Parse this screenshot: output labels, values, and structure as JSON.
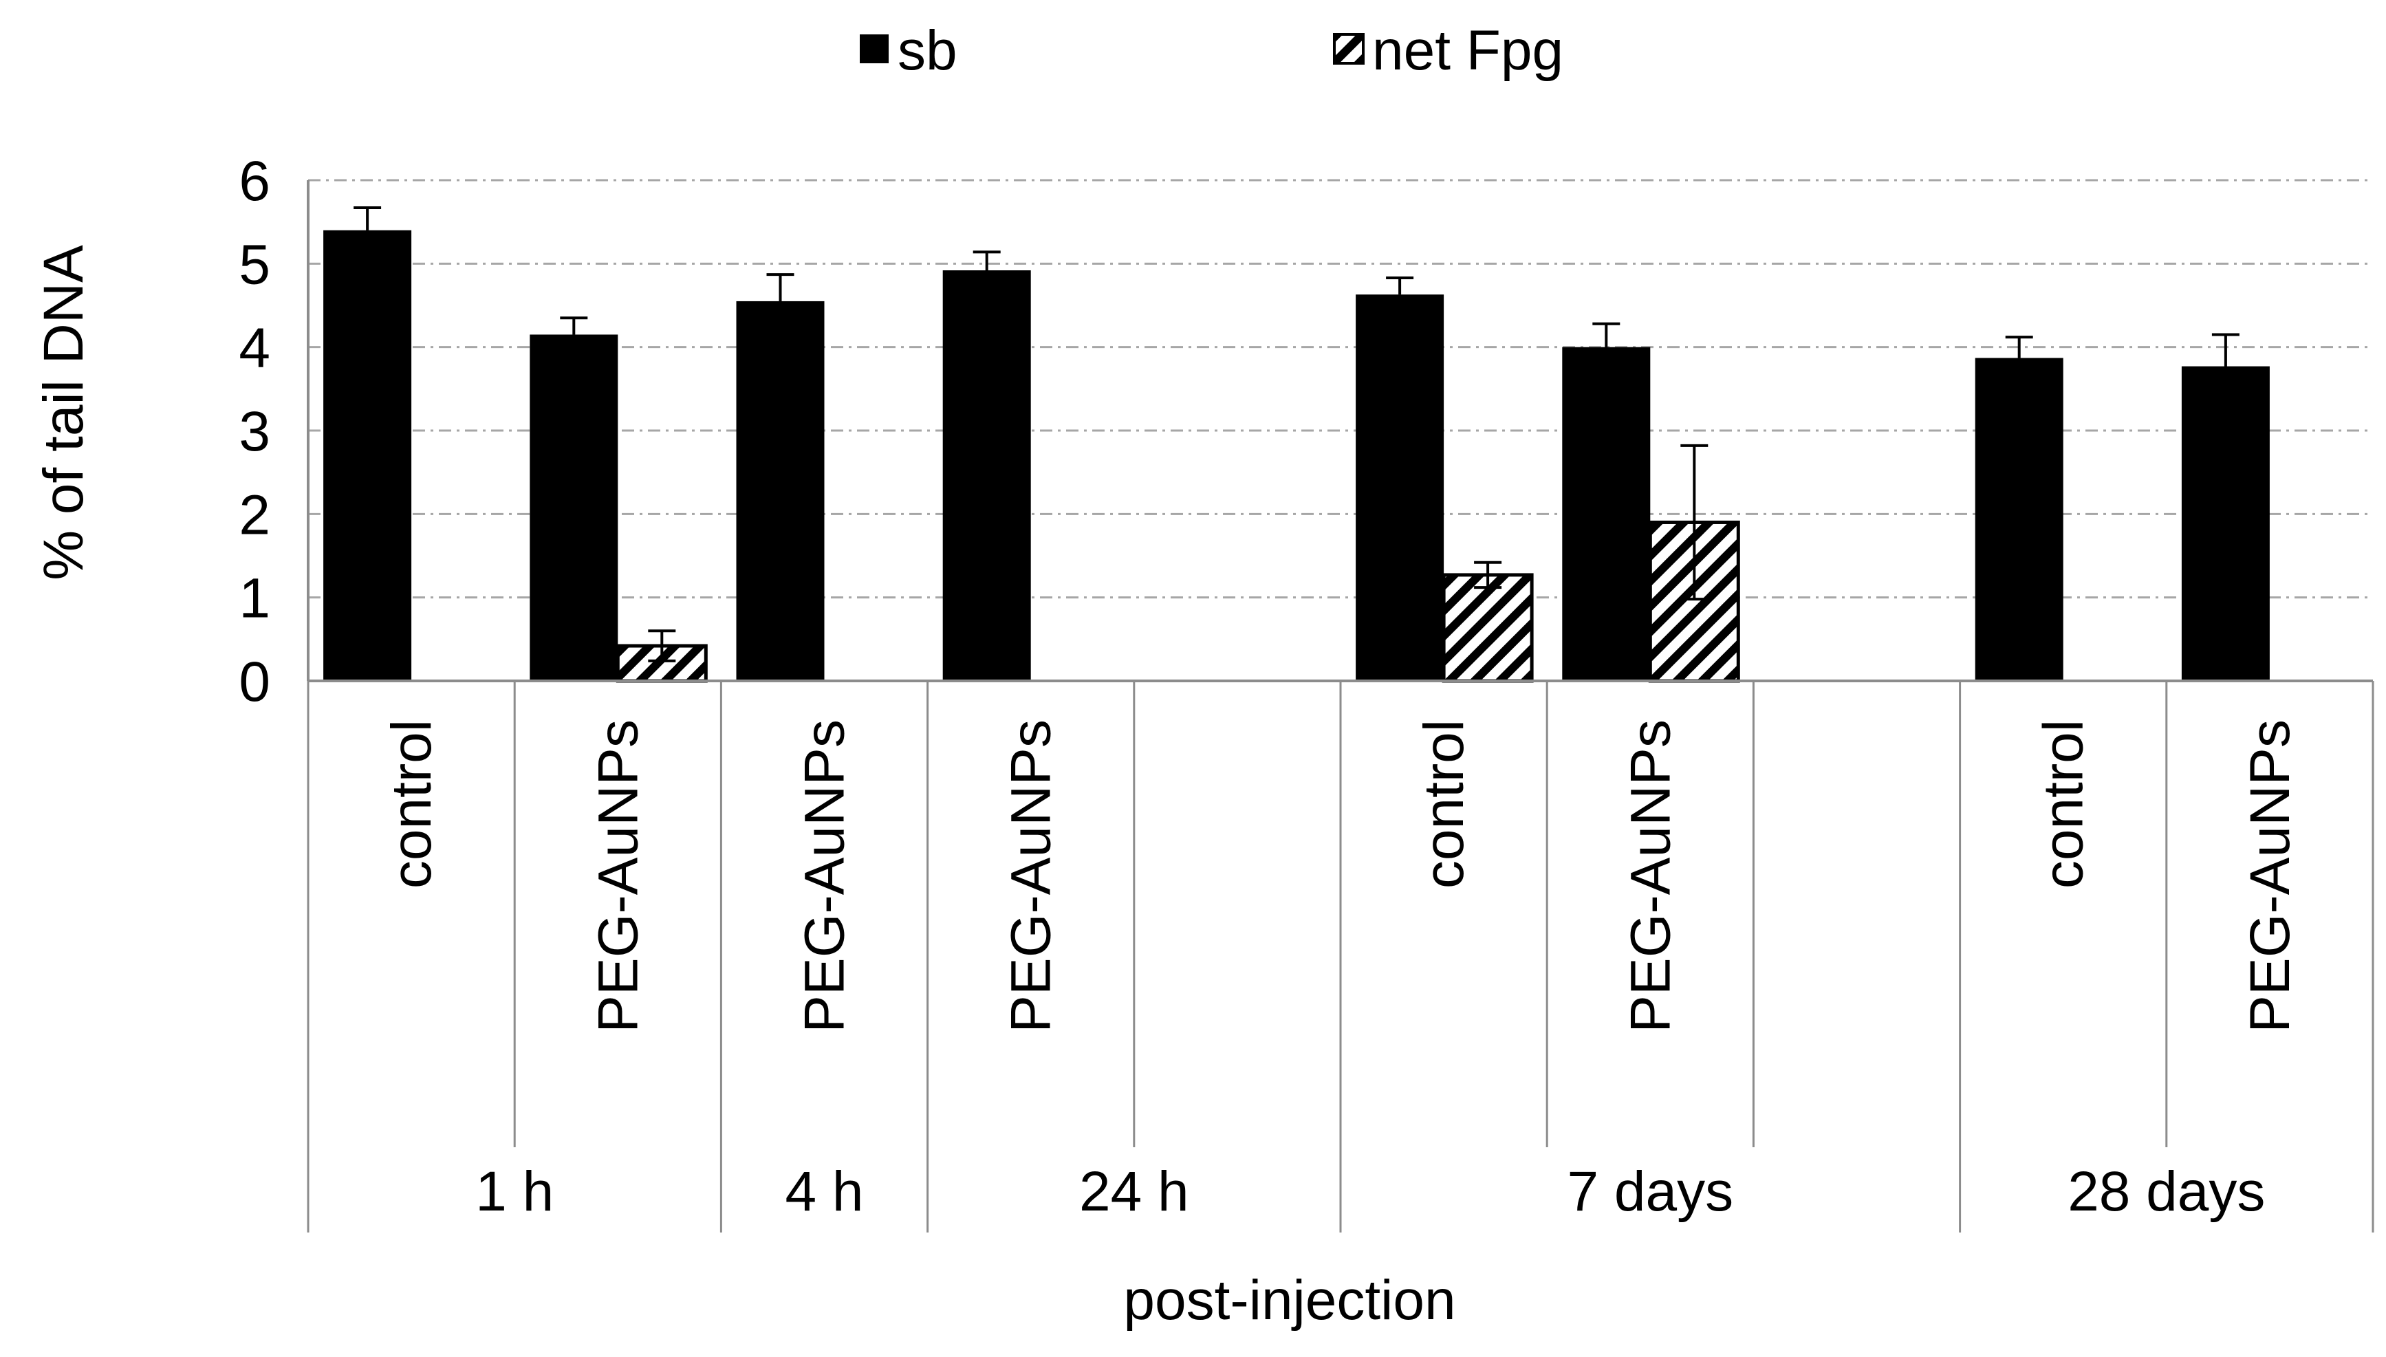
{
  "chart_data": {
    "type": "bar",
    "ylabel": "% of tail DNA",
    "xlabel": "post-injection",
    "ylim": [
      0,
      6
    ],
    "yticks": [
      0,
      1,
      2,
      3,
      4,
      5,
      6
    ],
    "grid": true,
    "legend": {
      "placement": "top-center",
      "entries": [
        {
          "name": "sb",
          "fill": "solid",
          "color": "#000000"
        },
        {
          "name": "net Fpg",
          "fill": "hatched",
          "color": "#000000"
        }
      ]
    },
    "categories": [
      "control",
      "PEG-AuNPs",
      "PEG-AuNPs",
      "PEG-AuNPs",
      "",
      "control",
      "PEG-AuNPs",
      "",
      "control",
      "PEG-AuNPs"
    ],
    "groups": [
      {
        "label": "1 h",
        "span": 2
      },
      {
        "label": "4 h",
        "span": 1
      },
      {
        "label": "24 h",
        "span": 2
      },
      {
        "label": "7 days",
        "span": 3
      },
      {
        "label": "28 days",
        "span": 2
      }
    ],
    "series": [
      {
        "name": "sb",
        "values": [
          5.4,
          4.15,
          4.55,
          4.92,
          null,
          4.63,
          4.0,
          null,
          3.87,
          3.77
        ],
        "errors": [
          0.27,
          0.2,
          0.32,
          0.22,
          null,
          0.2,
          0.28,
          null,
          0.25,
          0.38
        ]
      },
      {
        "name": "net Fpg",
        "values": [
          null,
          0.42,
          null,
          null,
          null,
          1.27,
          1.9,
          null,
          null,
          null
        ],
        "errors": [
          null,
          0.18,
          null,
          null,
          null,
          0.15,
          0.92,
          null,
          null,
          null
        ]
      }
    ]
  }
}
